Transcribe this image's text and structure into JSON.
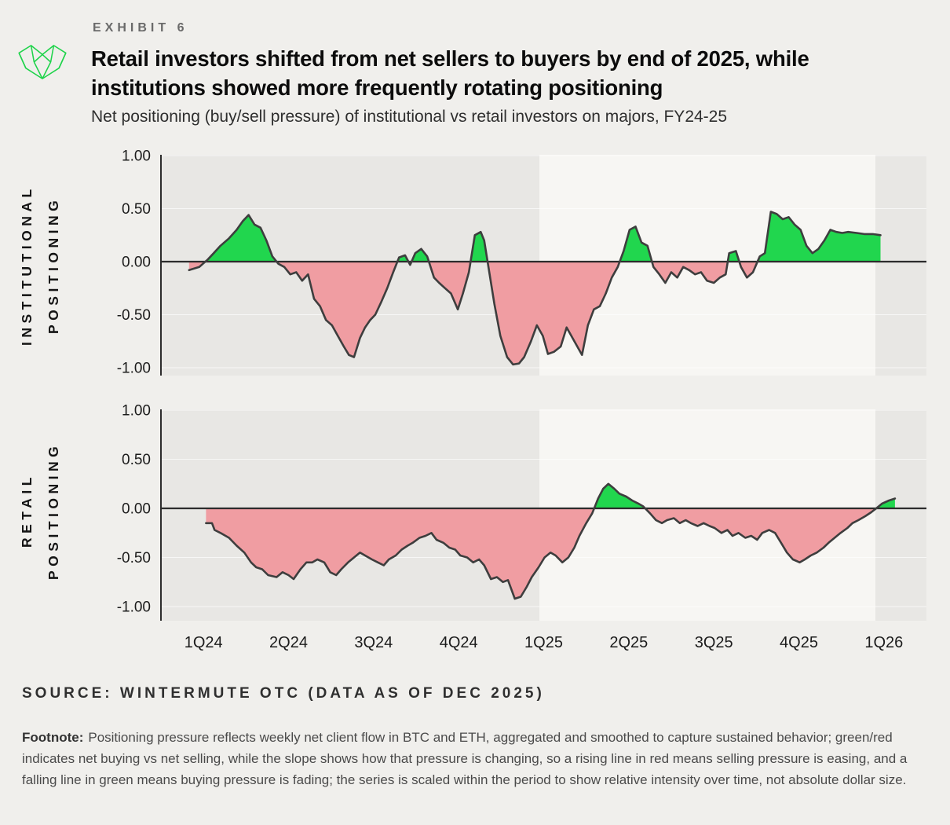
{
  "header": {
    "exhibit_label": "EXHIBIT 6",
    "title_lines": [
      "Retail investors shifted from net sellers to buyers by end of 2025, while",
      "institutions showed more frequently rotating positioning"
    ],
    "subtitle": "Net positioning (buy/sell pressure) of institutional vs retail investors on majors, FY24-25"
  },
  "source": "SOURCE: WINTERMUTE OTC (DATA AS OF DEC 2025)",
  "footnote": {
    "label": "Footnote:",
    "text": "Positioning pressure reflects weekly net client flow in BTC and ETH, aggregated and smoothed to capture sustained behavior; green/red indicates net buying vs net selling, while the slope shows how that pressure is changing, so a rising line in red means selling pressure is easing, and a falling line in green means buying pressure is fading; the series is scaled within the period to show relative intensity over time, not absolute dollar size."
  },
  "colors": {
    "page_bg": "#f0efec",
    "band_dark": "#e8e7e4",
    "band_light": "#f7f6f3",
    "positive_green": "#21d64e",
    "negative_pink": "#f09da2",
    "series_line": "#3e3e3e",
    "axis_dark": "#2c2c2c",
    "logo_green": "#1ed34a",
    "gridline": "rgba(255,255,255,0.65)"
  },
  "chart_data": [
    {
      "type": "area",
      "name": "institutional",
      "y_axis_label_lines": [
        "INSTITUTIONAL",
        "POSITIONING"
      ],
      "ylim": [
        -1,
        1
      ],
      "yticks": [
        "1.00",
        "0.50",
        "0.00",
        "-0.50",
        "-1.00"
      ],
      "ytick_values": [
        1,
        0.5,
        0,
        -0.5,
        -1
      ],
      "x_categories": [
        "1Q24",
        "2Q24",
        "3Q24",
        "4Q24",
        "1Q25",
        "2Q25",
        "3Q25",
        "4Q25",
        "1Q26"
      ],
      "x_range_quarters": [
        0,
        9
      ],
      "bands": [
        {
          "from": 0,
          "to": 4.45,
          "tone": "dark"
        },
        {
          "from": 4.45,
          "to": 8.4,
          "tone": "light"
        },
        {
          "from": 8.4,
          "to": 9,
          "tone": "dark"
        }
      ],
      "points": [
        [
          0.33,
          -0.08
        ],
        [
          0.45,
          -0.05
        ],
        [
          0.55,
          0.02
        ],
        [
          0.62,
          0.08
        ],
        [
          0.7,
          0.15
        ],
        [
          0.8,
          0.22
        ],
        [
          0.89,
          0.3
        ],
        [
          0.96,
          0.38
        ],
        [
          1.03,
          0.44
        ],
        [
          1.1,
          0.35
        ],
        [
          1.17,
          0.32
        ],
        [
          1.24,
          0.2
        ],
        [
          1.31,
          0.05
        ],
        [
          1.38,
          -0.02
        ],
        [
          1.45,
          -0.05
        ],
        [
          1.52,
          -0.12
        ],
        [
          1.59,
          -0.1
        ],
        [
          1.66,
          -0.18
        ],
        [
          1.73,
          -0.12
        ],
        [
          1.8,
          -0.35
        ],
        [
          1.87,
          -0.42
        ],
        [
          1.94,
          -0.55
        ],
        [
          2.01,
          -0.6
        ],
        [
          2.08,
          -0.7
        ],
        [
          2.15,
          -0.8
        ],
        [
          2.21,
          -0.88
        ],
        [
          2.27,
          -0.9
        ],
        [
          2.34,
          -0.72
        ],
        [
          2.4,
          -0.62
        ],
        [
          2.46,
          -0.55
        ],
        [
          2.52,
          -0.5
        ],
        [
          2.59,
          -0.38
        ],
        [
          2.66,
          -0.25
        ],
        [
          2.73,
          -0.1
        ],
        [
          2.8,
          0.04
        ],
        [
          2.87,
          0.06
        ],
        [
          2.93,
          -0.03
        ],
        [
          2.99,
          0.08
        ],
        [
          3.06,
          0.12
        ],
        [
          3.13,
          0.05
        ],
        [
          3.21,
          -0.15
        ],
        [
          3.27,
          -0.2
        ],
        [
          3.34,
          -0.25
        ],
        [
          3.41,
          -0.3
        ],
        [
          3.49,
          -0.45
        ],
        [
          3.55,
          -0.3
        ],
        [
          3.62,
          -0.1
        ],
        [
          3.69,
          0.25
        ],
        [
          3.76,
          0.28
        ],
        [
          3.8,
          0.2
        ],
        [
          3.86,
          -0.1
        ],
        [
          3.92,
          -0.4
        ],
        [
          3.99,
          -0.7
        ],
        [
          4.07,
          -0.9
        ],
        [
          4.14,
          -0.97
        ],
        [
          4.21,
          -0.96
        ],
        [
          4.27,
          -0.9
        ],
        [
          4.35,
          -0.75
        ],
        [
          4.42,
          -0.6
        ],
        [
          4.49,
          -0.7
        ],
        [
          4.55,
          -0.87
        ],
        [
          4.62,
          -0.85
        ],
        [
          4.7,
          -0.8
        ],
        [
          4.77,
          -0.62
        ],
        [
          4.86,
          -0.75
        ],
        [
          4.95,
          -0.88
        ],
        [
          5.02,
          -0.6
        ],
        [
          5.09,
          -0.45
        ],
        [
          5.16,
          -0.42
        ],
        [
          5.23,
          -0.3
        ],
        [
          5.3,
          -0.15
        ],
        [
          5.37,
          -0.05
        ],
        [
          5.44,
          0.1
        ],
        [
          5.51,
          0.3
        ],
        [
          5.58,
          0.33
        ],
        [
          5.65,
          0.18
        ],
        [
          5.72,
          0.15
        ],
        [
          5.79,
          -0.05
        ],
        [
          5.86,
          -0.12
        ],
        [
          5.93,
          -0.2
        ],
        [
          6.0,
          -0.1
        ],
        [
          6.07,
          -0.15
        ],
        [
          6.14,
          -0.05
        ],
        [
          6.21,
          -0.08
        ],
        [
          6.28,
          -0.12
        ],
        [
          6.35,
          -0.1
        ],
        [
          6.42,
          -0.18
        ],
        [
          6.5,
          -0.2
        ],
        [
          6.57,
          -0.15
        ],
        [
          6.64,
          -0.12
        ],
        [
          6.68,
          0.08
        ],
        [
          6.76,
          0.1
        ],
        [
          6.82,
          -0.05
        ],
        [
          6.89,
          -0.15
        ],
        [
          6.96,
          -0.1
        ],
        [
          7.04,
          0.05
        ],
        [
          7.1,
          0.08
        ],
        [
          7.17,
          0.47
        ],
        [
          7.24,
          0.45
        ],
        [
          7.31,
          0.4
        ],
        [
          7.38,
          0.42
        ],
        [
          7.45,
          0.35
        ],
        [
          7.52,
          0.3
        ],
        [
          7.59,
          0.15
        ],
        [
          7.66,
          0.08
        ],
        [
          7.73,
          0.12
        ],
        [
          7.8,
          0.2
        ],
        [
          7.87,
          0.3
        ],
        [
          7.94,
          0.28
        ],
        [
          8.01,
          0.27
        ],
        [
          8.08,
          0.28
        ],
        [
          8.18,
          0.27
        ],
        [
          8.27,
          0.26
        ],
        [
          8.37,
          0.26
        ],
        [
          8.46,
          0.25
        ]
      ]
    },
    {
      "type": "area",
      "name": "retail",
      "y_axis_label_lines": [
        "RETAIL",
        "POSITIONING"
      ],
      "ylim": [
        -1,
        1
      ],
      "yticks": [
        "1.00",
        "0.50",
        "0.00",
        "-0.50",
        "-1.00"
      ],
      "ytick_values": [
        1,
        0.5,
        0,
        -0.5,
        -1
      ],
      "x_categories": [
        "1Q24",
        "2Q24",
        "3Q24",
        "4Q24",
        "1Q25",
        "2Q25",
        "3Q25",
        "4Q25",
        "1Q26"
      ],
      "x_range_quarters": [
        0,
        9
      ],
      "bands": [
        {
          "from": 0,
          "to": 4.45,
          "tone": "dark"
        },
        {
          "from": 4.45,
          "to": 8.4,
          "tone": "light"
        },
        {
          "from": 8.4,
          "to": 9,
          "tone": "dark"
        }
      ],
      "points": [
        [
          0.53,
          -0.15
        ],
        [
          0.6,
          -0.15
        ],
        [
          0.63,
          -0.22
        ],
        [
          0.7,
          -0.25
        ],
        [
          0.8,
          -0.3
        ],
        [
          0.89,
          -0.38
        ],
        [
          0.98,
          -0.45
        ],
        [
          1.06,
          -0.55
        ],
        [
          1.12,
          -0.6
        ],
        [
          1.19,
          -0.62
        ],
        [
          1.26,
          -0.68
        ],
        [
          1.36,
          -0.7
        ],
        [
          1.43,
          -0.65
        ],
        [
          1.5,
          -0.68
        ],
        [
          1.56,
          -0.72
        ],
        [
          1.64,
          -0.62
        ],
        [
          1.71,
          -0.55
        ],
        [
          1.78,
          -0.55
        ],
        [
          1.84,
          -0.52
        ],
        [
          1.92,
          -0.55
        ],
        [
          1.99,
          -0.65
        ],
        [
          2.06,
          -0.68
        ],
        [
          2.12,
          -0.62
        ],
        [
          2.2,
          -0.55
        ],
        [
          2.27,
          -0.5
        ],
        [
          2.34,
          -0.45
        ],
        [
          2.4,
          -0.48
        ],
        [
          2.48,
          -0.52
        ],
        [
          2.55,
          -0.55
        ],
        [
          2.62,
          -0.58
        ],
        [
          2.68,
          -0.52
        ],
        [
          2.76,
          -0.48
        ],
        [
          2.83,
          -0.42
        ],
        [
          2.9,
          -0.38
        ],
        [
          2.96,
          -0.35
        ],
        [
          3.04,
          -0.3
        ],
        [
          3.11,
          -0.28
        ],
        [
          3.18,
          -0.25
        ],
        [
          3.24,
          -0.32
        ],
        [
          3.32,
          -0.35
        ],
        [
          3.39,
          -0.4
        ],
        [
          3.46,
          -0.42
        ],
        [
          3.52,
          -0.48
        ],
        [
          3.6,
          -0.5
        ],
        [
          3.67,
          -0.55
        ],
        [
          3.74,
          -0.52
        ],
        [
          3.8,
          -0.58
        ],
        [
          3.88,
          -0.72
        ],
        [
          3.95,
          -0.7
        ],
        [
          4.02,
          -0.75
        ],
        [
          4.08,
          -0.73
        ],
        [
          4.16,
          -0.92
        ],
        [
          4.23,
          -0.9
        ],
        [
          4.3,
          -0.8
        ],
        [
          4.36,
          -0.7
        ],
        [
          4.44,
          -0.6
        ],
        [
          4.51,
          -0.5
        ],
        [
          4.58,
          -0.45
        ],
        [
          4.64,
          -0.48
        ],
        [
          4.72,
          -0.55
        ],
        [
          4.79,
          -0.5
        ],
        [
          4.86,
          -0.4
        ],
        [
          4.92,
          -0.28
        ],
        [
          5.0,
          -0.15
        ],
        [
          5.07,
          -0.05
        ],
        [
          5.14,
          0.1
        ],
        [
          5.2,
          0.2
        ],
        [
          5.26,
          0.25
        ],
        [
          5.33,
          0.2
        ],
        [
          5.39,
          0.15
        ],
        [
          5.47,
          0.12
        ],
        [
          5.54,
          0.08
        ],
        [
          5.61,
          0.05
        ],
        [
          5.67,
          0.02
        ],
        [
          5.75,
          -0.05
        ],
        [
          5.82,
          -0.12
        ],
        [
          5.89,
          -0.15
        ],
        [
          5.95,
          -0.12
        ],
        [
          6.03,
          -0.1
        ],
        [
          6.1,
          -0.15
        ],
        [
          6.17,
          -0.12
        ],
        [
          6.23,
          -0.15
        ],
        [
          6.31,
          -0.18
        ],
        [
          6.38,
          -0.15
        ],
        [
          6.45,
          -0.18
        ],
        [
          6.51,
          -0.2
        ],
        [
          6.59,
          -0.25
        ],
        [
          6.66,
          -0.22
        ],
        [
          6.72,
          -0.28
        ],
        [
          6.79,
          -0.25
        ],
        [
          6.87,
          -0.3
        ],
        [
          6.94,
          -0.28
        ],
        [
          7.01,
          -0.32
        ],
        [
          7.07,
          -0.25
        ],
        [
          7.15,
          -0.22
        ],
        [
          7.22,
          -0.25
        ],
        [
          7.29,
          -0.35
        ],
        [
          7.36,
          -0.45
        ],
        [
          7.43,
          -0.52
        ],
        [
          7.51,
          -0.55
        ],
        [
          7.57,
          -0.52
        ],
        [
          7.64,
          -0.48
        ],
        [
          7.71,
          -0.45
        ],
        [
          7.79,
          -0.4
        ],
        [
          7.85,
          -0.35
        ],
        [
          7.92,
          -0.3
        ],
        [
          7.99,
          -0.25
        ],
        [
          8.07,
          -0.2
        ],
        [
          8.13,
          -0.15
        ],
        [
          8.2,
          -0.12
        ],
        [
          8.28,
          -0.08
        ],
        [
          8.35,
          -0.04
        ],
        [
          8.41,
          0.0
        ],
        [
          8.48,
          0.05
        ],
        [
          8.56,
          0.08
        ],
        [
          8.63,
          0.1
        ]
      ]
    }
  ]
}
